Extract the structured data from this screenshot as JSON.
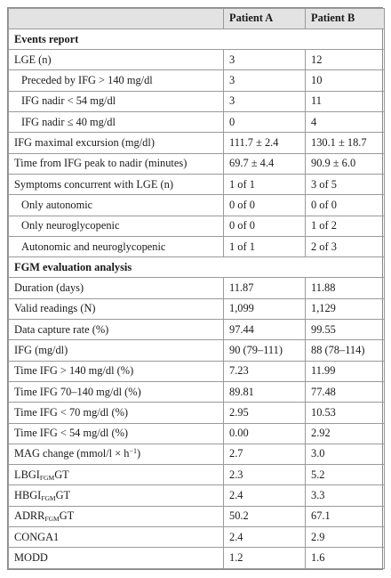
{
  "table": {
    "header": {
      "col1": "",
      "col2": "Patient A",
      "col3": "Patient B"
    },
    "sections": [
      {
        "title": "Events report",
        "rows": [
          {
            "label": "LGE (n)",
            "a": "3",
            "b": "12",
            "indent": false
          },
          {
            "label": "Preceded by IFG > 140 mg/dl",
            "a": "3",
            "b": "10",
            "indent": true
          },
          {
            "label": "IFG nadir < 54 mg/dl",
            "a": "3",
            "b": "11",
            "indent": true
          },
          {
            "label": "IFG nadir ≤ 40 mg/dl",
            "a": "0",
            "b": "4",
            "indent": true
          },
          {
            "label": "IFG maximal excursion (mg/dl)",
            "a": "111.7 ± 2.4",
            "b": "130.1 ± 18.7",
            "indent": false
          },
          {
            "label": "Time from IFG peak to nadir (minutes)",
            "a": "69.7 ± 4.4",
            "b": "90.9 ± 6.0",
            "indent": false
          },
          {
            "label": "Symptoms concurrent with LGE (n)",
            "a": "1 of 1",
            "b": "3 of 5",
            "indent": false
          },
          {
            "label": "Only autonomic",
            "a": "0 of 0",
            "b": "0 of 0",
            "indent": true
          },
          {
            "label": "Only neuroglycopenic",
            "a": "0 of 0",
            "b": "1 of 2",
            "indent": true
          },
          {
            "label": "Autonomic and neuroglycopenic",
            "a": "1 of 1",
            "b": "2 of 3",
            "indent": true
          }
        ]
      },
      {
        "title": "FGM evaluation analysis",
        "rows": [
          {
            "label": "Duration (days)",
            "a": "11.87",
            "b": "11.88",
            "indent": false
          },
          {
            "label": "Valid readings (N)",
            "a": "1,099",
            "b": "1,129",
            "indent": false
          },
          {
            "label": "Data capture rate (%)",
            "a": "97.44",
            "b": "99.55",
            "indent": false
          },
          {
            "label": "IFG (mg/dl)",
            "a": "90 (79–111)",
            "b": "88 (78–114)",
            "indent": false
          },
          {
            "label": "Time IFG > 140 mg/dl (%)",
            "a": "7.23",
            "b": "11.99",
            "indent": false
          },
          {
            "label": "Time IFG 70–140 mg/dl (%)",
            "a": "89.81",
            "b": "77.48",
            "indent": false
          },
          {
            "label": "Time IFG < 70 mg/dl (%)",
            "a": "2.95",
            "b": "10.53",
            "indent": false
          },
          {
            "label": "Time IFG < 54 mg/dl (%)",
            "a": "0.00",
            "b": "2.92",
            "indent": false
          },
          {
            "label": "MAG change (mmol/l × h",
            "label_sup": "−1",
            "label_tail": ")",
            "a": "2.7",
            "b": "3.0",
            "indent": false
          },
          {
            "label": "LBGI",
            "label_sub": "FGM",
            "label_tail": "GT",
            "a": "2.3",
            "b": "5.2",
            "indent": false
          },
          {
            "label": "HBGI",
            "label_sub": "FGM",
            "label_tail": "GT",
            "a": "2.4",
            "b": "3.3",
            "indent": false
          },
          {
            "label": "ADRR",
            "label_sub": "FGM",
            "label_tail": "GT",
            "a": "50.2",
            "b": "67.1",
            "indent": false
          },
          {
            "label": "CONGA1",
            "a": "2.4",
            "b": "2.9",
            "indent": false
          },
          {
            "label": "MODD",
            "a": "1.2",
            "b": "1.6",
            "indent": false
          }
        ]
      }
    ]
  }
}
